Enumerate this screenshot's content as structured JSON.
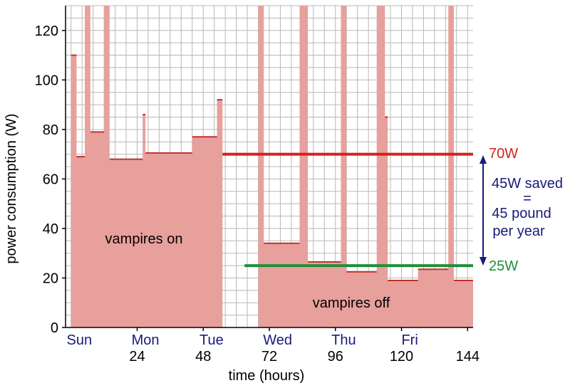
{
  "chart_data": {
    "type": "area",
    "xlabel": "time (hours)",
    "ylabel": "power consumption (W)",
    "xlim": [
      -2,
      146
    ],
    "ylim": [
      0,
      130
    ],
    "grid": true,
    "x_ticks": [
      24,
      48,
      72,
      96,
      120,
      144
    ],
    "y_ticks": [
      0,
      20,
      40,
      60,
      80,
      100,
      120
    ],
    "day_labels": [
      {
        "x": 3,
        "label": "Sun"
      },
      {
        "x": 27,
        "label": "Mon"
      },
      {
        "x": 51,
        "label": "Tue"
      },
      {
        "x": 75,
        "label": "Wed"
      },
      {
        "x": 99,
        "label": "Thu"
      },
      {
        "x": 123,
        "label": "Fri"
      }
    ],
    "series": [
      {
        "color": "#e8a09c",
        "points": [
          [
            0,
            110
          ],
          [
            2,
            110
          ],
          [
            2,
            69
          ],
          [
            5,
            69
          ],
          [
            5,
            130
          ],
          [
            7,
            130
          ],
          [
            7,
            79
          ],
          [
            12,
            79
          ],
          [
            12,
            130
          ],
          [
            14,
            130
          ],
          [
            14,
            68
          ],
          [
            26,
            68
          ],
          [
            26,
            86
          ],
          [
            27,
            86
          ],
          [
            27,
            70.5
          ],
          [
            44,
            70.5
          ],
          [
            44,
            77
          ],
          [
            53,
            77
          ],
          [
            53,
            92
          ],
          [
            55,
            92
          ],
          [
            55,
            0
          ],
          [
            68,
            0
          ],
          [
            68,
            130
          ],
          [
            70,
            130
          ],
          [
            70,
            34
          ],
          [
            83,
            34
          ],
          [
            83,
            130
          ],
          [
            86,
            130
          ],
          [
            86,
            26.5
          ],
          [
            98,
            26.5
          ],
          [
            98,
            130
          ],
          [
            100,
            130
          ],
          [
            100,
            22.5
          ],
          [
            111,
            22.5
          ],
          [
            111,
            130
          ],
          [
            114,
            130
          ],
          [
            114,
            85
          ],
          [
            115,
            85
          ],
          [
            115,
            19
          ],
          [
            126,
            19
          ],
          [
            126,
            23.5
          ],
          [
            137,
            23.5
          ],
          [
            137,
            130
          ],
          [
            139,
            130
          ],
          [
            139,
            19
          ],
          [
            151,
            19
          ],
          [
            151,
            0
          ]
        ]
      }
    ],
    "reference_lines": [
      {
        "label": "70W",
        "y": 70,
        "x_start": 55,
        "x_end": 151,
        "color": "#d42020"
      },
      {
        "label": "25W",
        "y": 25,
        "x_start": 63,
        "x_end": 151,
        "color": "#1e8f3a"
      }
    ],
    "annotations": {
      "area_on": "vampires on",
      "area_off": "vampires off",
      "saved_line1": "45W saved",
      "saved_line2": "=",
      "saved_line3": "45 pound",
      "saved_line4": "per year"
    },
    "annotation_color": "#1a1a7a"
  }
}
